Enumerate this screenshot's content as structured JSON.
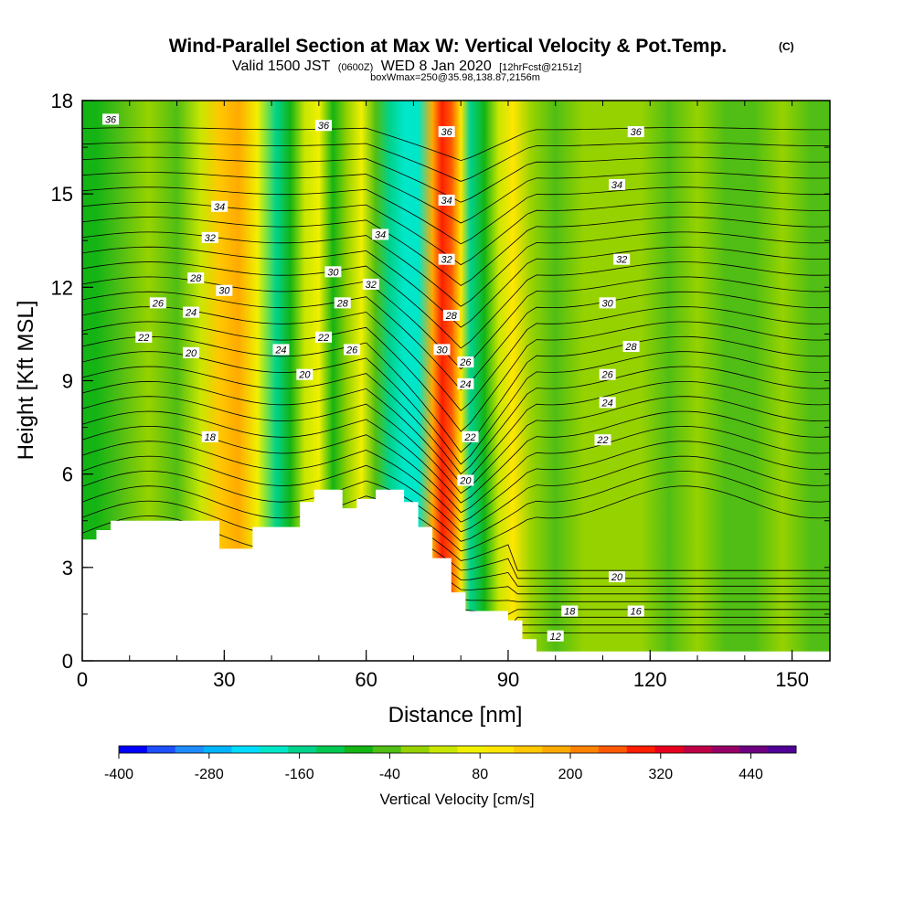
{
  "chart_data": {
    "type": "contour",
    "title": "Wind-Parallel Section at Max W: Vertical Velocity & Pot.Temp.",
    "title_mark": "(C)",
    "subtitle": {
      "part1": "Valid 1500 JST",
      "part2": "(0600Z)",
      "part3": "WED 8 Jan 2020",
      "part4": "[12hrFcst@2151z]"
    },
    "subtitle2": "boxWmax=250@35.98,138.87,2156m",
    "xlabel": "Distance [nm]",
    "ylabel": "Height [Kft MSL]",
    "xlim": [
      0,
      158
    ],
    "ylim": [
      0,
      18
    ],
    "xticks": [
      0,
      30,
      60,
      90,
      120,
      150
    ],
    "yticks": [
      0,
      3,
      6,
      9,
      12,
      15,
      18
    ],
    "colorbar": {
      "label": "Vertical Velocity [cm/s]",
      "range": [
        -400,
        500
      ],
      "step": 40,
      "tick_labels": [
        "-400",
        "-280",
        "-160",
        "-40",
        "80",
        "200",
        "320",
        "440"
      ],
      "tick_values": [
        -400,
        -280,
        -160,
        -40,
        80,
        200,
        320,
        440
      ],
      "colors": [
        "#0000ff",
        "#1e50ff",
        "#1e8cff",
        "#00b4ff",
        "#00dcff",
        "#00e6c8",
        "#00d28c",
        "#00c850",
        "#14b414",
        "#50be14",
        "#96d200",
        "#c8e600",
        "#f0f000",
        "#ffe600",
        "#ffc800",
        "#ffaa00",
        "#ff8200",
        "#ff5a00",
        "#ff1e00",
        "#e6001e",
        "#be0046",
        "#960064",
        "#6e0080",
        "#500096"
      ]
    },
    "vertical_velocity_bands": [
      {
        "x": 3,
        "w": -55
      },
      {
        "x": 8,
        "w": -40
      },
      {
        "x": 14,
        "w": 10
      },
      {
        "x": 20,
        "w": -40
      },
      {
        "x": 25,
        "w": 70
      },
      {
        "x": 29,
        "w": 160
      },
      {
        "x": 33,
        "w": 200
      },
      {
        "x": 37,
        "w": 90
      },
      {
        "x": 41,
        "w": -130
      },
      {
        "x": 44,
        "w": -70
      },
      {
        "x": 47,
        "w": 40
      },
      {
        "x": 50,
        "w": 110
      },
      {
        "x": 53,
        "w": -80
      },
      {
        "x": 56,
        "w": 10
      },
      {
        "x": 59,
        "w": 90
      },
      {
        "x": 62,
        "w": -40
      },
      {
        "x": 65,
        "w": -140
      },
      {
        "x": 68,
        "w": -200
      },
      {
        "x": 71,
        "w": -170
      },
      {
        "x": 74,
        "w": 200
      },
      {
        "x": 76,
        "w": 320
      },
      {
        "x": 78,
        "w": 280
      },
      {
        "x": 80,
        "w": 150
      },
      {
        "x": 82,
        "w": -150
      },
      {
        "x": 85,
        "w": -60
      },
      {
        "x": 88,
        "w": 60
      },
      {
        "x": 91,
        "w": 140
      },
      {
        "x": 95,
        "w": 30
      },
      {
        "x": 100,
        "w": -40
      },
      {
        "x": 106,
        "w": 10
      },
      {
        "x": 112,
        "w": 30
      },
      {
        "x": 118,
        "w": 10
      },
      {
        "x": 124,
        "w": -30
      },
      {
        "x": 130,
        "w": 20
      },
      {
        "x": 136,
        "w": -40
      },
      {
        "x": 142,
        "w": -30
      },
      {
        "x": 148,
        "w": 20
      },
      {
        "x": 154,
        "w": -30
      },
      {
        "x": 158,
        "w": -20
      }
    ],
    "theta_contour_labels": [
      {
        "x": 6,
        "y": 17.4,
        "text": "36"
      },
      {
        "x": 51,
        "y": 17.2,
        "text": "36"
      },
      {
        "x": 77,
        "y": 17.0,
        "text": "36"
      },
      {
        "x": 117,
        "y": 17.0,
        "text": "36"
      },
      {
        "x": 29,
        "y": 14.6,
        "text": "34"
      },
      {
        "x": 77,
        "y": 14.8,
        "text": "34"
      },
      {
        "x": 63,
        "y": 13.7,
        "text": "34"
      },
      {
        "x": 113,
        "y": 15.3,
        "text": "34"
      },
      {
        "x": 27,
        "y": 13.6,
        "text": "32"
      },
      {
        "x": 61,
        "y": 12.1,
        "text": "32"
      },
      {
        "x": 77,
        "y": 12.9,
        "text": "32"
      },
      {
        "x": 114,
        "y": 12.9,
        "text": "32"
      },
      {
        "x": 24,
        "y": 12.3,
        "text": "28"
      },
      {
        "x": 30,
        "y": 11.9,
        "text": "30"
      },
      {
        "x": 53,
        "y": 12.5,
        "text": "30"
      },
      {
        "x": 55,
        "y": 11.5,
        "text": "28"
      },
      {
        "x": 78,
        "y": 11.1,
        "text": "28"
      },
      {
        "x": 111,
        "y": 11.5,
        "text": "30"
      },
      {
        "x": 16,
        "y": 11.5,
        "text": "26"
      },
      {
        "x": 23,
        "y": 11.2,
        "text": "24"
      },
      {
        "x": 76,
        "y": 10.0,
        "text": "30"
      },
      {
        "x": 81,
        "y": 9.6,
        "text": "26"
      },
      {
        "x": 116,
        "y": 10.1,
        "text": "28"
      },
      {
        "x": 111,
        "y": 9.2,
        "text": "26"
      },
      {
        "x": 13,
        "y": 10.4,
        "text": "22"
      },
      {
        "x": 23,
        "y": 9.9,
        "text": "20"
      },
      {
        "x": 42,
        "y": 10.0,
        "text": "24"
      },
      {
        "x": 51,
        "y": 10.4,
        "text": "22"
      },
      {
        "x": 57,
        "y": 10.0,
        "text": "26"
      },
      {
        "x": 81,
        "y": 8.9,
        "text": "24"
      },
      {
        "x": 111,
        "y": 8.3,
        "text": "24"
      },
      {
        "x": 47,
        "y": 9.2,
        "text": "20"
      },
      {
        "x": 27,
        "y": 7.2,
        "text": "18"
      },
      {
        "x": 82,
        "y": 7.2,
        "text": "22"
      },
      {
        "x": 110,
        "y": 7.1,
        "text": "22"
      },
      {
        "x": 81,
        "y": 5.8,
        "text": "20"
      },
      {
        "x": 113,
        "y": 2.7,
        "text": "20"
      },
      {
        "x": 103,
        "y": 1.6,
        "text": "18"
      },
      {
        "x": 117,
        "y": 1.6,
        "text": "16"
      },
      {
        "x": 100,
        "y": 0.8,
        "text": "12"
      }
    ]
  }
}
